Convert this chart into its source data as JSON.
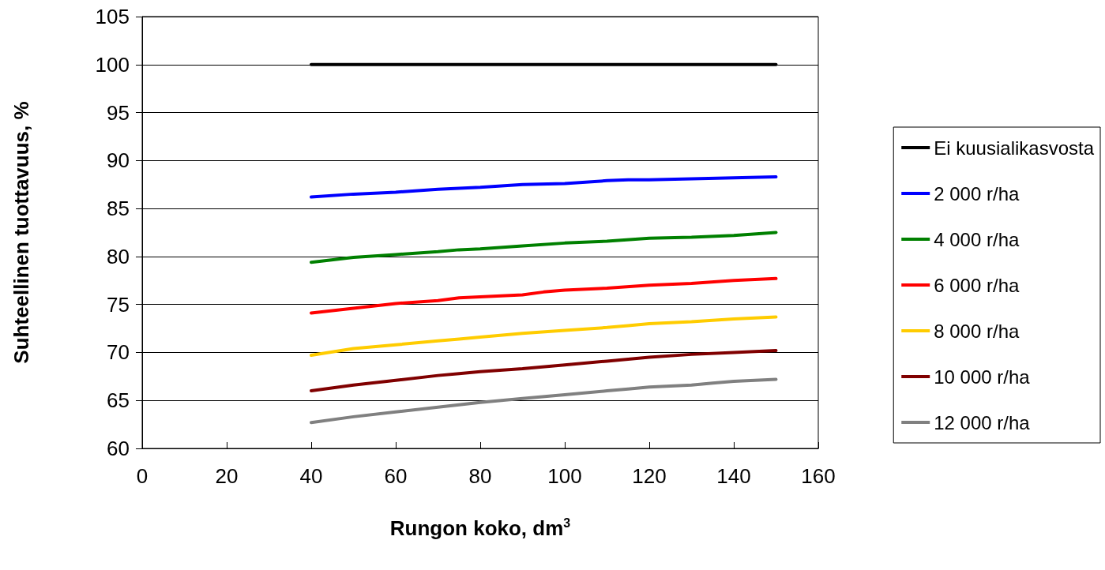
{
  "chart_data": {
    "type": "line",
    "xlabel": "Rungon koko, dm$^{3}$",
    "ylabel": "Suhteellinen tuottavuus, %",
    "xlim": [
      0,
      160
    ],
    "xticks": [
      0,
      20,
      40,
      60,
      80,
      100,
      120,
      140,
      160
    ],
    "ylim": [
      60,
      105
    ],
    "yticks": [
      60,
      65,
      70,
      75,
      80,
      85,
      90,
      95,
      100,
      105
    ],
    "grid": "y",
    "legend": "right",
    "marker": "none",
    "line_style": "solid",
    "series": [
      {
        "name": "Ei kuusialikasvosta",
        "color": "#000000",
        "x": [
          40,
          150
        ],
        "values": [
          100,
          100
        ]
      },
      {
        "name": "2 000 r/ha",
        "color": "#0000ff",
        "x": [
          40,
          50,
          60,
          70,
          80,
          90,
          100,
          110,
          115,
          120,
          130,
          140,
          150
        ],
        "values": [
          86.2,
          86.5,
          86.7,
          87.0,
          87.2,
          87.5,
          87.6,
          87.9,
          88.0,
          88.0,
          88.1,
          88.2,
          88.3
        ]
      },
      {
        "name": "4 000 r/ha",
        "color": "#008000",
        "x": [
          40,
          50,
          60,
          70,
          75,
          80,
          90,
          100,
          110,
          120,
          130,
          140,
          150
        ],
        "values": [
          79.4,
          79.9,
          80.2,
          80.5,
          80.7,
          80.8,
          81.1,
          81.4,
          81.6,
          81.9,
          82.0,
          82.2,
          82.5
        ]
      },
      {
        "name": "6 000 r/ha",
        "color": "#ff0000",
        "x": [
          40,
          50,
          60,
          70,
          75,
          80,
          90,
          95,
          100,
          110,
          120,
          130,
          140,
          150
        ],
        "values": [
          74.1,
          74.6,
          75.1,
          75.4,
          75.7,
          75.8,
          76.0,
          76.3,
          76.5,
          76.7,
          77.0,
          77.2,
          77.5,
          77.7
        ]
      },
      {
        "name": "8 000 r/ha",
        "color": "#ffcc00",
        "x": [
          40,
          50,
          60,
          70,
          75,
          80,
          90,
          100,
          110,
          115,
          120,
          130,
          140,
          150
        ],
        "values": [
          69.7,
          70.4,
          70.8,
          71.2,
          71.4,
          71.6,
          72.0,
          72.3,
          72.6,
          72.8,
          73.0,
          73.2,
          73.5,
          73.7
        ]
      },
      {
        "name": "10 000 r/ha",
        "color": "#800000",
        "x": [
          40,
          50,
          60,
          70,
          75,
          80,
          90,
          100,
          110,
          115,
          120,
          130,
          140,
          150
        ],
        "values": [
          66.0,
          66.6,
          67.1,
          67.6,
          67.8,
          68.0,
          68.3,
          68.7,
          69.1,
          69.3,
          69.5,
          69.8,
          70.0,
          70.2
        ]
      },
      {
        "name": "12 000 r/ha",
        "color": "#808080",
        "x": [
          40,
          50,
          60,
          70,
          80,
          90,
          100,
          110,
          115,
          120,
          130,
          135,
          140,
          150
        ],
        "values": [
          62.7,
          63.3,
          63.8,
          64.3,
          64.8,
          65.2,
          65.6,
          66.0,
          66.2,
          66.4,
          66.6,
          66.8,
          67.0,
          67.2
        ]
      }
    ]
  }
}
